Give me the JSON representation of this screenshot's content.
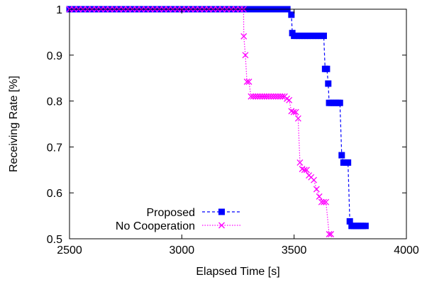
{
  "chart_data": {
    "type": "line",
    "title": "",
    "xlabel": "Elapsed Time [s]",
    "ylabel": "Receiving Rate [%]",
    "xlim": [
      2500,
      4000
    ],
    "ylim": [
      0.5,
      1.0
    ],
    "xticks": [
      2500,
      3000,
      3500,
      4000
    ],
    "yticks": [
      0.5,
      0.6,
      0.7,
      0.8,
      0.9,
      1
    ],
    "ytick_labels": [
      "0.5",
      "0.6",
      "0.7",
      "0.8",
      "0.9",
      "1"
    ],
    "grid": false,
    "legend_position": "bottom-left",
    "series": [
      {
        "name": "Proposed",
        "color": "#0000ff",
        "marker": "filled-square",
        "line": "dashed",
        "points": [
          [
            2500,
            1.0
          ],
          [
            2525,
            1.0
          ],
          [
            2550,
            1.0
          ],
          [
            2575,
            1.0
          ],
          [
            2600,
            1.0
          ],
          [
            2625,
            1.0
          ],
          [
            2650,
            1.0
          ],
          [
            2675,
            1.0
          ],
          [
            2700,
            1.0
          ],
          [
            2725,
            1.0
          ],
          [
            2750,
            1.0
          ],
          [
            2775,
            1.0
          ],
          [
            2800,
            1.0
          ],
          [
            2825,
            1.0
          ],
          [
            2850,
            1.0
          ],
          [
            2875,
            1.0
          ],
          [
            2900,
            1.0
          ],
          [
            2925,
            1.0
          ],
          [
            2950,
            1.0
          ],
          [
            2975,
            1.0
          ],
          [
            3000,
            1.0
          ],
          [
            3025,
            1.0
          ],
          [
            3050,
            1.0
          ],
          [
            3075,
            1.0
          ],
          [
            3100,
            1.0
          ],
          [
            3125,
            1.0
          ],
          [
            3150,
            1.0
          ],
          [
            3175,
            1.0
          ],
          [
            3200,
            1.0
          ],
          [
            3225,
            1.0
          ],
          [
            3250,
            1.0
          ],
          [
            3275,
            1.0
          ],
          [
            3300,
            1.0
          ],
          [
            3325,
            1.0
          ],
          [
            3350,
            1.0
          ],
          [
            3375,
            1.0
          ],
          [
            3400,
            1.0
          ],
          [
            3425,
            1.0
          ],
          [
            3450,
            1.0
          ],
          [
            3470,
            1.0
          ],
          [
            3488,
            0.988
          ],
          [
            3492,
            0.948
          ],
          [
            3500,
            0.942
          ],
          [
            3512,
            0.942
          ],
          [
            3524,
            0.942
          ],
          [
            3536,
            0.942
          ],
          [
            3548,
            0.942
          ],
          [
            3560,
            0.942
          ],
          [
            3572,
            0.942
          ],
          [
            3584,
            0.942
          ],
          [
            3596,
            0.942
          ],
          [
            3608,
            0.942
          ],
          [
            3620,
            0.942
          ],
          [
            3632,
            0.942
          ],
          [
            3638,
            0.87
          ],
          [
            3646,
            0.87
          ],
          [
            3652,
            0.838
          ],
          [
            3656,
            0.796
          ],
          [
            3666,
            0.796
          ],
          [
            3676,
            0.796
          ],
          [
            3686,
            0.796
          ],
          [
            3696,
            0.796
          ],
          [
            3704,
            0.796
          ],
          [
            3712,
            0.682
          ],
          [
            3720,
            0.666
          ],
          [
            3732,
            0.666
          ],
          [
            3740,
            0.666
          ],
          [
            3748,
            0.538
          ],
          [
            3756,
            0.528
          ],
          [
            3766,
            0.528
          ],
          [
            3776,
            0.528
          ],
          [
            3786,
            0.528
          ],
          [
            3796,
            0.528
          ],
          [
            3806,
            0.528
          ],
          [
            3818,
            0.528
          ]
        ]
      },
      {
        "name": "No Cooperation",
        "color": "#ff00ff",
        "marker": "x",
        "line": "dotted",
        "points": [
          [
            2500,
            1.0
          ],
          [
            2520,
            1.0
          ],
          [
            2540,
            1.0
          ],
          [
            2560,
            1.0
          ],
          [
            2580,
            1.0
          ],
          [
            2600,
            1.0
          ],
          [
            2620,
            1.0
          ],
          [
            2640,
            1.0
          ],
          [
            2660,
            1.0
          ],
          [
            2680,
            1.0
          ],
          [
            2700,
            1.0
          ],
          [
            2720,
            1.0
          ],
          [
            2740,
            1.0
          ],
          [
            2760,
            1.0
          ],
          [
            2780,
            1.0
          ],
          [
            2800,
            1.0
          ],
          [
            2820,
            1.0
          ],
          [
            2840,
            1.0
          ],
          [
            2860,
            1.0
          ],
          [
            2880,
            1.0
          ],
          [
            2900,
            1.0
          ],
          [
            2920,
            1.0
          ],
          [
            2940,
            1.0
          ],
          [
            2960,
            1.0
          ],
          [
            2980,
            1.0
          ],
          [
            3000,
            1.0
          ],
          [
            3020,
            1.0
          ],
          [
            3040,
            1.0
          ],
          [
            3060,
            1.0
          ],
          [
            3080,
            1.0
          ],
          [
            3100,
            1.0
          ],
          [
            3120,
            1.0
          ],
          [
            3140,
            1.0
          ],
          [
            3160,
            1.0
          ],
          [
            3180,
            1.0
          ],
          [
            3200,
            1.0
          ],
          [
            3220,
            1.0
          ],
          [
            3240,
            1.0
          ],
          [
            3260,
            1.0
          ],
          [
            3275,
            1.0
          ],
          [
            3276,
            0.941
          ],
          [
            3283,
            0.9
          ],
          [
            3290,
            0.842
          ],
          [
            3299,
            0.842
          ],
          [
            3308,
            0.81
          ],
          [
            3318,
            0.81
          ],
          [
            3328,
            0.81
          ],
          [
            3338,
            0.81
          ],
          [
            3348,
            0.81
          ],
          [
            3358,
            0.81
          ],
          [
            3368,
            0.81
          ],
          [
            3378,
            0.81
          ],
          [
            3388,
            0.81
          ],
          [
            3398,
            0.81
          ],
          [
            3408,
            0.81
          ],
          [
            3418,
            0.81
          ],
          [
            3428,
            0.81
          ],
          [
            3438,
            0.81
          ],
          [
            3448,
            0.81
          ],
          [
            3458,
            0.81
          ],
          [
            3468,
            0.805
          ],
          [
            3478,
            0.802
          ],
          [
            3488,
            0.778
          ],
          [
            3498,
            0.776
          ],
          [
            3508,
            0.776
          ],
          [
            3518,
            0.762
          ],
          [
            3526,
            0.666
          ],
          [
            3536,
            0.652
          ],
          [
            3546,
            0.65
          ],
          [
            3556,
            0.65
          ],
          [
            3566,
            0.638
          ],
          [
            3576,
            0.634
          ],
          [
            3588,
            0.628
          ],
          [
            3600,
            0.608
          ],
          [
            3612,
            0.592
          ],
          [
            3622,
            0.58
          ],
          [
            3632,
            0.58
          ],
          [
            3642,
            0.58
          ],
          [
            3656,
            0.51
          ],
          [
            3664,
            0.51
          ]
        ]
      }
    ]
  }
}
